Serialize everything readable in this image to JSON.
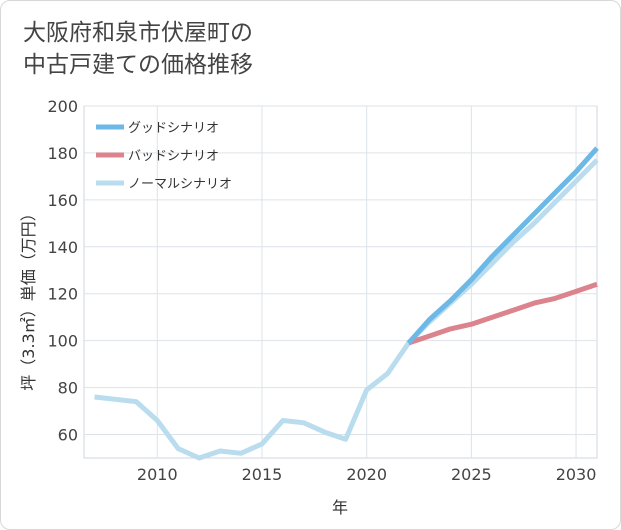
{
  "title": {
    "line1": "大阪府和泉市伏屋町の",
    "line2": "中古戸建ての価格推移"
  },
  "chart_data": {
    "type": "line",
    "title": "大阪府和泉市伏屋町の中古戸建ての価格推移",
    "xlabel": "年",
    "ylabel": "坪（3.3㎡）単価（万円）",
    "xlim": [
      2006.5,
      2031
    ],
    "ylim": [
      50,
      200
    ],
    "xticks": [
      2010,
      2015,
      2020,
      2025,
      2030
    ],
    "yticks": [
      60,
      80,
      100,
      120,
      140,
      160,
      180,
      200
    ],
    "grid": true,
    "legend_position": "top-left",
    "series": [
      {
        "name": "グッドシナリオ",
        "color": "#6cb8e6",
        "width": 5,
        "x": [
          2022,
          2023,
          2024,
          2025,
          2026,
          2027,
          2028,
          2029,
          2030,
          2031
        ],
        "y": [
          99,
          109,
          117,
          126,
          136,
          145,
          154,
          163,
          172,
          182
        ]
      },
      {
        "name": "バッドシナリオ",
        "color": "#dc848e",
        "width": 5,
        "x": [
          2022,
          2023,
          2024,
          2025,
          2026,
          2027,
          2028,
          2029,
          2030,
          2031
        ],
        "y": [
          99,
          102,
          105,
          107,
          110,
          113,
          116,
          118,
          121,
          124
        ]
      },
      {
        "name": "ノーマルシナリオ",
        "color": "#b9dcee",
        "width": 5,
        "x": [
          2007,
          2008,
          2009,
          2010,
          2011,
          2012,
          2013,
          2014,
          2015,
          2016,
          2017,
          2018,
          2019,
          2020,
          2021,
          2022,
          2023,
          2024,
          2025,
          2026,
          2027,
          2028,
          2029,
          2030,
          2031
        ],
        "y": [
          76,
          75,
          74,
          66,
          54,
          50,
          53,
          52,
          56,
          66,
          65,
          61,
          58,
          79,
          86,
          99,
          108,
          116,
          124,
          133,
          142,
          150,
          159,
          168,
          177
        ]
      }
    ]
  }
}
